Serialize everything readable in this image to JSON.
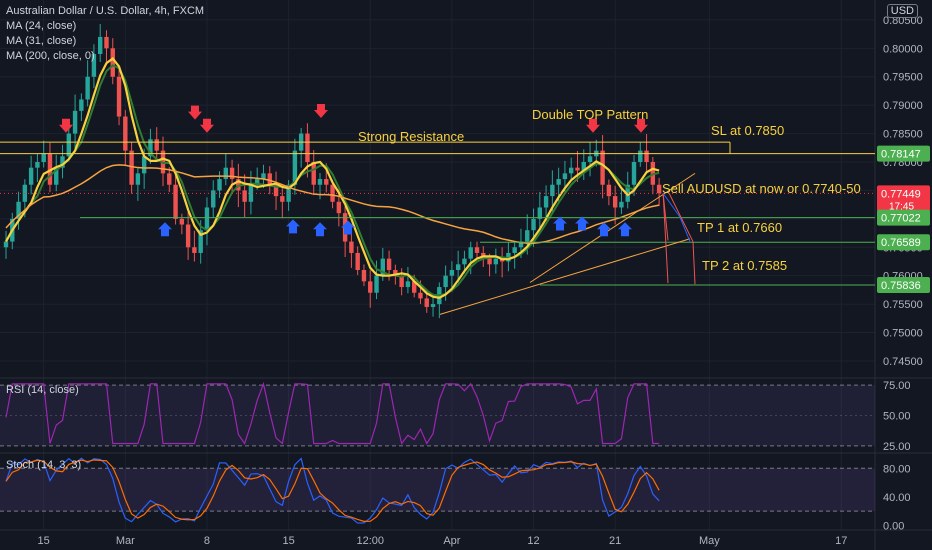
{
  "header": {
    "symbol": "Australian Dollar / U.S. Dollar, 4h, FXCM",
    "currency": "USD",
    "indicators": [
      "MA (24, close)",
      "MA (31, close)",
      "MA (200, close, 0)"
    ]
  },
  "price_labels": [
    "0.80500",
    "0.80000",
    "0.79500",
    "0.79000",
    "0.78500",
    "0.78000",
    "0.77500",
    "0.77000",
    "0.76500",
    "0.76000",
    "0.75500",
    "0.75000",
    "0.74500"
  ],
  "x_labels": [
    {
      "label": "15",
      "i": 6
    },
    {
      "label": "Mar",
      "i": 19
    },
    {
      "label": "8",
      "i": 32
    },
    {
      "label": "15",
      "i": 45
    },
    {
      "label": "12:00",
      "i": 58
    },
    {
      "label": "Apr",
      "i": 71
    },
    {
      "label": "12",
      "i": 84
    },
    {
      "label": "21",
      "i": 97
    },
    {
      "label": "May",
      "i": 112
    },
    {
      "label": "17",
      "i": 133
    }
  ],
  "price_tags": [
    {
      "label": "0.78147",
      "price": 0.78147,
      "color": "#4caf50"
    },
    {
      "label": "0.77449",
      "sub": "17:45",
      "price": 0.77449,
      "color": "#f23645"
    },
    {
      "label": "0.77022",
      "price": 0.77022,
      "color": "#4caf50"
    },
    {
      "label": "0.76589",
      "price": 0.76589,
      "color": "#4caf50"
    },
    {
      "label": "0.75836",
      "price": 0.75836,
      "color": "#4caf50"
    }
  ],
  "annotations": {
    "double_top": "Double TOP Pattern",
    "strong_resistance": "Strong Resistance",
    "sl": "SL at 0.7850",
    "sell": "Sell AUDUSD at now or 0.7740-50",
    "tp1": "TP 1 at 0.7660",
    "tp2": "TP 2 at 0.7585"
  },
  "rsi_panel": {
    "title": "RSI (14, close)",
    "levels": [
      "75.00",
      "50.00",
      "25.00"
    ]
  },
  "stoch_panel": {
    "title": "Stoch (14, 3, 3)",
    "levels": [
      "80.00",
      "40.00",
      "0.00"
    ]
  },
  "colors": {
    "background": "#131722",
    "up": "#26a69a",
    "down": "#ef5350",
    "ma24": "#f7d23e",
    "ma31": "#2e7d32",
    "ma200": "#f7a440",
    "rsi": "#9c27b0",
    "stoch_k": "#2962ff",
    "stoch_d": "#ff6d00"
  },
  "chart_data": {
    "type": "candlestick",
    "title": "Australian Dollar / U.S. Dollar, 4h, FXCM",
    "y_range": [
      0.742,
      0.8085
    ],
    "closes": [
      0.766,
      0.77,
      0.773,
      0.776,
      0.779,
      0.78,
      0.7815,
      0.776,
      0.779,
      0.781,
      0.785,
      0.789,
      0.791,
      0.795,
      0.799,
      0.802,
      0.8,
      0.795,
      0.788,
      0.782,
      0.776,
      0.778,
      0.781,
      0.784,
      0.782,
      0.778,
      0.776,
      0.77,
      0.769,
      0.765,
      0.764,
      0.768,
      0.772,
      0.775,
      0.777,
      0.779,
      0.777,
      0.775,
      0.773,
      0.776,
      0.777,
      0.778,
      0.776,
      0.774,
      0.773,
      0.776,
      0.782,
      0.785,
      0.78,
      0.776,
      0.777,
      0.776,
      0.773,
      0.771,
      0.766,
      0.764,
      0.761,
      0.759,
      0.757,
      0.76,
      0.763,
      0.761,
      0.76,
      0.758,
      0.759,
      0.757,
      0.756,
      0.7545,
      0.755,
      0.758,
      0.76,
      0.761,
      0.762,
      0.763,
      0.765,
      0.764,
      0.763,
      0.762,
      0.763,
      0.7625,
      0.764,
      0.765,
      0.766,
      0.768,
      0.77,
      0.772,
      0.774,
      0.776,
      0.777,
      0.778,
      0.779,
      0.7785,
      0.78,
      0.781,
      0.782,
      0.776,
      0.774,
      0.772,
      0.773,
      0.776,
      0.78,
      0.782,
      0.78,
      0.776,
      0.7745
    ],
    "annotated_levels": {
      "sl": 0.785,
      "resistance_top": 0.7835,
      "resistance_bottom": 0.78147,
      "sell_zone": 0.7745,
      "tp1": 0.766,
      "tp2": 0.7585
    },
    "x_tick_labels": [
      "15",
      "Mar",
      "8",
      "15",
      "12:00",
      "Apr",
      "12",
      "21",
      "May",
      "17"
    ],
    "rsi": {
      "name": "RSI (14, close)",
      "range": [
        20,
        80
      ],
      "levels": [
        75,
        50,
        25
      ]
    },
    "stoch": {
      "name": "Stoch (14, 3, 3)",
      "range": [
        -5,
        100
      ],
      "levels": [
        80,
        20
      ]
    }
  }
}
